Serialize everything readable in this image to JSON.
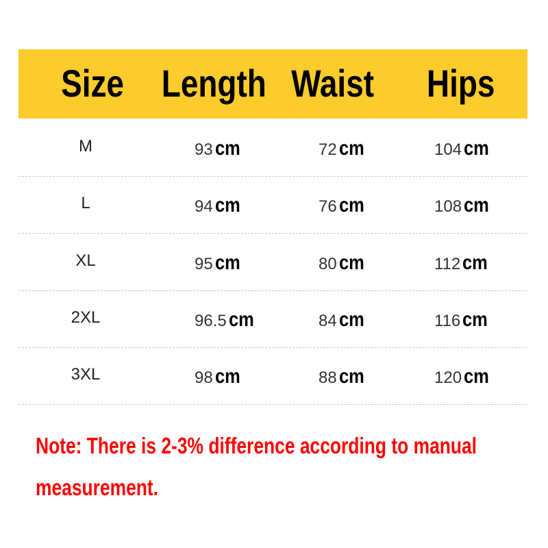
{
  "table": {
    "header_color": "#fccb2c",
    "headers": [
      "Size",
      "Length",
      "Waist",
      "Hips"
    ],
    "unit": "cm",
    "rows": [
      {
        "size": "M",
        "length": "93",
        "waist": "72",
        "hips": "104"
      },
      {
        "size": "L",
        "length": "94",
        "waist": "76",
        "hips": "108"
      },
      {
        "size": "XL",
        "length": "95",
        "waist": "80",
        "hips": "112"
      },
      {
        "size": "2XL",
        "length": "96.5",
        "waist": "84",
        "hips": "116"
      },
      {
        "size": "3XL",
        "length": "98",
        "waist": "88",
        "hips": "120"
      }
    ]
  },
  "note": {
    "line1": "Note:  There is 2-3% difference according to manual",
    "line2": "measurement.",
    "color": "#ff0000"
  }
}
